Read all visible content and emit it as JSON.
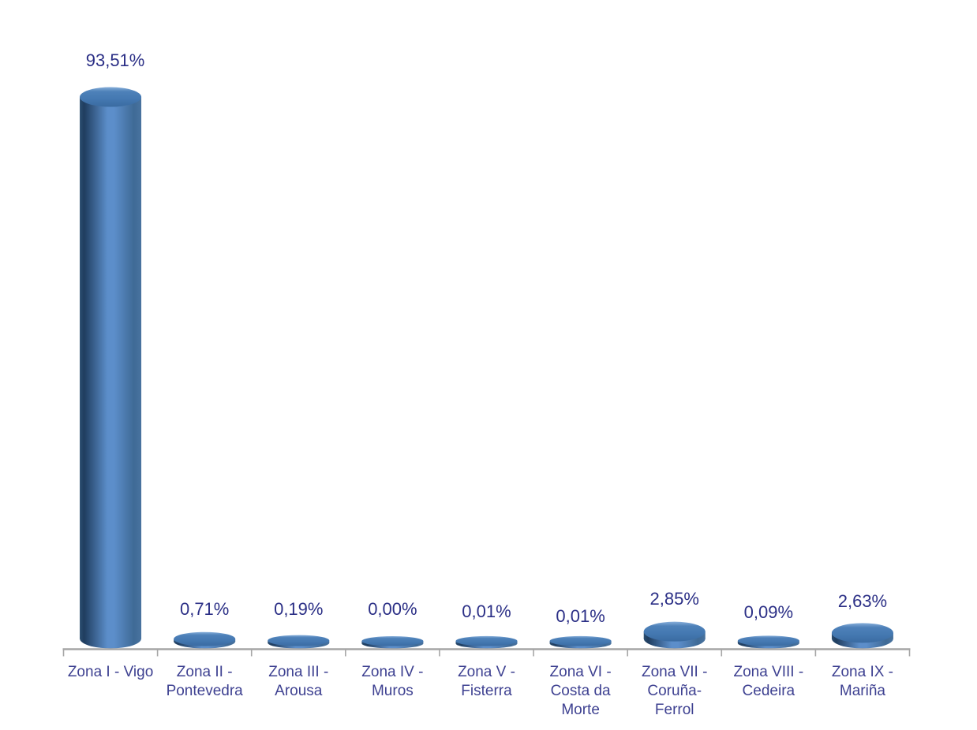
{
  "chart_data": {
    "type": "bar",
    "subtype": "3d-cylinder-vertical",
    "title": "",
    "categories": [
      "Zona I - Vigo",
      "Zona II - Pontevedra",
      "Zona III - Arousa",
      "Zona IV - Muros",
      "Zona V - Fisterra",
      "Zona VI - Costa da Morte",
      "Zona VII - Coruña-Ferrol",
      "Zona VIII - Cedeira",
      "Zona IX - Mariña"
    ],
    "categories_wrapped": [
      [
        "Zona I - Vigo"
      ],
      [
        "Zona II -",
        "Pontevedra"
      ],
      [
        "Zona III -",
        "Arousa"
      ],
      [
        "Zona IV -",
        "Muros"
      ],
      [
        "Zona V -",
        "Fisterra"
      ],
      [
        "Zona VI -",
        "Costa da",
        "Morte"
      ],
      [
        "Zona VII -",
        "Coruña-",
        "Ferrol"
      ],
      [
        "Zona VIII -",
        "Cedeira"
      ],
      [
        "Zona IX -",
        "Mariña"
      ]
    ],
    "values": [
      93.51,
      0.71,
      0.19,
      0.0,
      0.01,
      0.01,
      2.85,
      0.09,
      2.63
    ],
    "value_labels": [
      "93,51%",
      "0,71%",
      "0,19%",
      "0,00%",
      "0,01%",
      "0,01%",
      "2,85%",
      "0,09%",
      "2,63%"
    ],
    "unit": "%",
    "decimal_separator": ",",
    "legend": false,
    "grid": false,
    "value_axis_visible": false,
    "category_axis_visible": true,
    "colors": {
      "background": "#FFFFFF",
      "bar_fill_main": "#4F81BD",
      "bar_body_dark": "#1F3D5F",
      "bar_body_light": "#5C8ECA",
      "bar_body_right": "#3F6A96",
      "bar_top_face": "#4478B1",
      "bar_top_rim": "#86AEDA",
      "axis_line": "#A6A6A6",
      "value_label_text": "#2B2F86",
      "category_label_text": "#3E4191"
    }
  }
}
